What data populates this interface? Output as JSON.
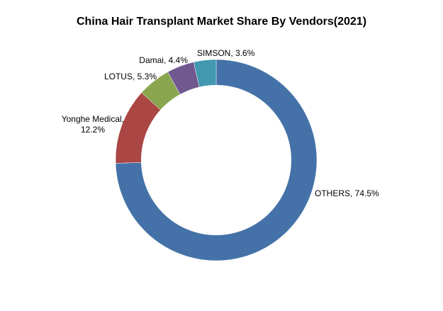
{
  "chart_data": {
    "type": "pie",
    "title": "China Hair Transplant Market Share By Vendors(2021)",
    "series": [
      {
        "name": "OTHERS",
        "value": 74.5,
        "label": "OTHERS, 74.5%",
        "color": "#4472A8"
      },
      {
        "name": "Yonghe Medical",
        "value": 12.2,
        "label_lines": [
          "Yonghe Medical,",
          "12.2%"
        ],
        "color": "#AA4643"
      },
      {
        "name": "LOTUS",
        "value": 5.3,
        "label": "LOTUS, 5.3%",
        "color": "#89A54E"
      },
      {
        "name": "Damai",
        "value": 4.4,
        "label": "Damai, 4.4%",
        "color": "#71588F"
      },
      {
        "name": "SIMSON",
        "value": 3.6,
        "label": "SIMSON, 3.6%",
        "color": "#4198AF"
      }
    ]
  }
}
